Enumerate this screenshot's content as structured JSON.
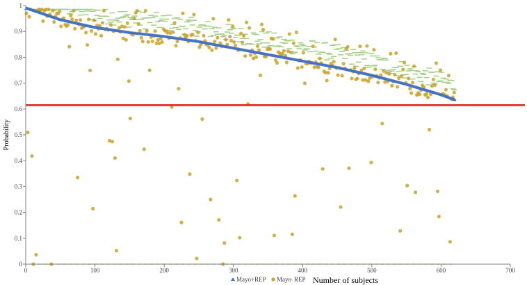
{
  "chart_data": {
    "type": "scatter",
    "xlabel": "Number of subjects",
    "ylabel": "Probability",
    "xlim": [
      0,
      700
    ],
    "ylim": [
      0,
      1
    ],
    "x_ticks": [
      0,
      100,
      200,
      300,
      400,
      500,
      600,
      700
    ],
    "y_ticks": [
      0,
      0.1,
      0.2,
      0.3,
      0.4,
      0.5,
      0.6,
      0.7,
      0.8,
      0.9,
      1
    ],
    "grid": false,
    "legend_position": "bottom",
    "threshold_line": {
      "y": 0.615,
      "color": "#e02020"
    },
    "series": [
      {
        "name": "Mayo+REP",
        "marker": "triangle",
        "color": "#4472c4",
        "n": 620,
        "curve_points": [
          [
            1,
            0.99
          ],
          [
            50,
            0.945
          ],
          [
            100,
            0.915
          ],
          [
            150,
            0.895
          ],
          [
            200,
            0.88
          ],
          [
            250,
            0.86
          ],
          [
            300,
            0.835
          ],
          [
            350,
            0.81
          ],
          [
            400,
            0.785
          ],
          [
            450,
            0.76
          ],
          [
            500,
            0.73
          ],
          [
            550,
            0.695
          ],
          [
            600,
            0.655
          ],
          [
            620,
            0.635
          ]
        ]
      },
      {
        "name": "Mayo",
        "marker": "circle",
        "color": "#c9a227"
      },
      {
        "name": "REP",
        "marker": "dash",
        "color": "#a9d18e"
      }
    ]
  }
}
